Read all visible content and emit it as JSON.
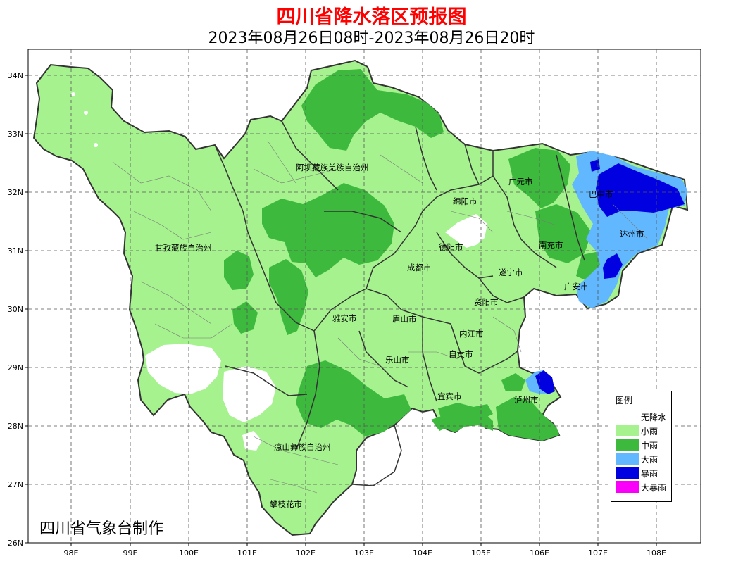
{
  "title": "四川省降水落区预报图",
  "subtitle": "2023年08月26日08时-2023年08月26日20时",
  "credit": "四川省气象台制作",
  "axes": {
    "x_ticks": [
      "98E",
      "99E",
      "100E",
      "101E",
      "102E",
      "103E",
      "104E",
      "105E",
      "106E",
      "107E",
      "108E"
    ],
    "y_ticks": [
      "34N",
      "33N",
      "32N",
      "31N",
      "30N",
      "29N",
      "28N",
      "27N",
      "26N"
    ]
  },
  "cities": [
    "阿坝藏族羌族自治州",
    "广元市",
    "巴中市",
    "绵阳市",
    "达州市",
    "德阳市",
    "甘孜藏族自治州",
    "南充市",
    "成都市",
    "遂宁市",
    "广安市",
    "资阳市",
    "雅安市",
    "眉山市",
    "内江市",
    "自贡市",
    "乐山市",
    "宜宾市",
    "泸州市",
    "凉山彝族自治州",
    "攀枝花市"
  ],
  "legend": {
    "title": "图例",
    "items": [
      {
        "label": "无降水",
        "color": "#ffffff"
      },
      {
        "label": "小雨",
        "color": "#a6f28f"
      },
      {
        "label": "中雨",
        "color": "#3dba3d"
      },
      {
        "label": "大雨",
        "color": "#61b8ff"
      },
      {
        "label": "暴雨",
        "color": "#0000e1"
      },
      {
        "label": "大暴雨",
        "color": "#fa00fa"
      }
    ]
  }
}
